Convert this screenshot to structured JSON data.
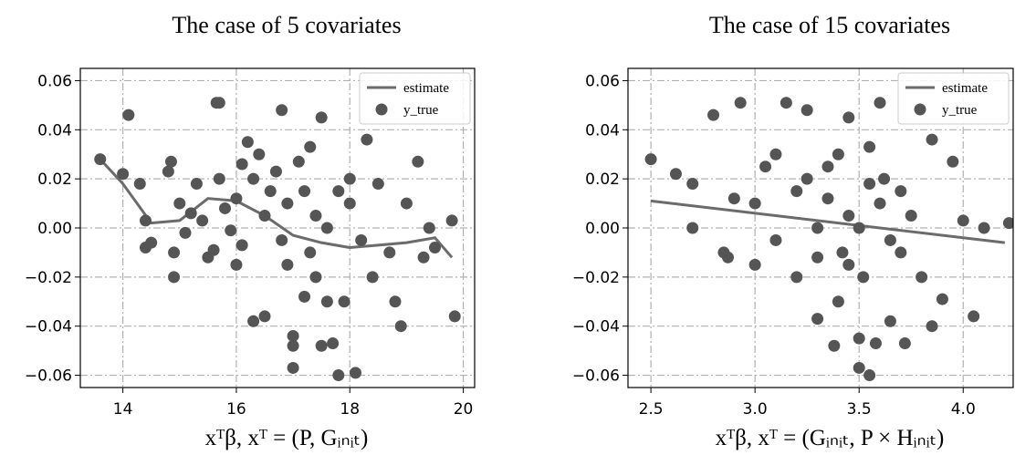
{
  "chart_data": [
    {
      "type": "scatter",
      "title": "The case of 5 covariates",
      "x_label": "xᵀβ, xᵀ = (P, Gᵢₙᵢₜ)",
      "xlim": [
        13.25,
        20.2
      ],
      "ylim": [
        -0.065,
        0.065
      ],
      "xticks": [
        14,
        16,
        18,
        20
      ],
      "yticks": [
        {
          "value": -0.06,
          "label": "−0.06"
        },
        {
          "value": -0.04,
          "label": "−0.04"
        },
        {
          "value": -0.02,
          "label": "−0.02"
        },
        {
          "value": 0,
          "label": "0.00"
        },
        0.02,
        0.04,
        0.06
      ],
      "grid": true,
      "legend": "upper right",
      "series": [
        {
          "name": "estimate",
          "type": "line",
          "color": "#6b6b6b",
          "x": [
            13.6,
            14.0,
            14.5,
            15.0,
            15.5,
            16.0,
            16.5,
            17.0,
            17.5,
            18.0,
            18.5,
            19.0,
            19.5,
            19.8
          ],
          "values": [
            0.028,
            0.018,
            0.002,
            0.003,
            0.012,
            0.011,
            0.005,
            -0.003,
            -0.006,
            -0.008,
            -0.007,
            -0.006,
            -0.004,
            -0.012
          ]
        },
        {
          "name": "y_true",
          "type": "scatter",
          "color": "#555555",
          "x": [
            13.6,
            14.1,
            14.0,
            14.3,
            14.4,
            14.4,
            14.5,
            14.8,
            14.85,
            14.9,
            14.9,
            15.0,
            15.1,
            15.2,
            15.3,
            15.4,
            15.5,
            15.6,
            15.7,
            15.65,
            15.7,
            15.8,
            15.9,
            16.0,
            16.0,
            16.1,
            16.1,
            16.2,
            16.3,
            16.3,
            16.4,
            16.5,
            16.5,
            16.6,
            16.7,
            16.8,
            16.8,
            16.9,
            17.0,
            17.0,
            17.0,
            17.1,
            17.2,
            17.3,
            17.4,
            17.4,
            17.5,
            17.5,
            17.6,
            17.7,
            17.8,
            17.8,
            17.9,
            18.0,
            18.1,
            18.2,
            18.3,
            18.4,
            18.5,
            18.7,
            18.8,
            18.9,
            19.0,
            19.2,
            19.3,
            19.4,
            19.5,
            19.8,
            19.85,
            17.2,
            17.6,
            16.9,
            18.0,
            17.3
          ],
          "values": [
            0.028,
            0.046,
            0.022,
            0.018,
            0.003,
            -0.008,
            -0.006,
            0.023,
            0.027,
            -0.02,
            -0.01,
            0.01,
            -0.002,
            0.006,
            0.018,
            0.003,
            -0.012,
            -0.009,
            0.051,
            0.051,
            0.02,
            0.008,
            -0.001,
            -0.015,
            0.012,
            0.026,
            -0.007,
            0.035,
            0.02,
            -0.038,
            0.03,
            0.005,
            -0.036,
            0.015,
            0.023,
            -0.005,
            0.048,
            0.01,
            -0.044,
            -0.057,
            -0.048,
            0.027,
            -0.028,
            0.033,
            0.005,
            -0.02,
            0.045,
            -0.048,
            -0.03,
            -0.047,
            0.015,
            -0.06,
            -0.03,
            0.01,
            -0.059,
            -0.005,
            0.036,
            -0.02,
            0.018,
            -0.01,
            -0.03,
            -0.04,
            0.01,
            0.027,
            -0.012,
            0,
            -0.008,
            0.003,
            -0.036,
            0.015,
            0,
            -0.015,
            0.02,
            -0.01
          ]
        }
      ]
    },
    {
      "type": "scatter",
      "title": "The case of 15 covariates",
      "x_label": "xᵀβ, xᵀ = (Gᵢₙᵢₜ, P × Hᵢₙᵢₜ)",
      "xlim": [
        2.39,
        4.24
      ],
      "ylim": [
        -0.065,
        0.065
      ],
      "xticks": [
        2.5,
        {
          "value": 3,
          "label": "3.0"
        },
        3.5,
        {
          "value": 4,
          "label": "4.0"
        }
      ],
      "yticks": [
        {
          "value": -0.06,
          "label": "−0.06"
        },
        {
          "value": -0.04,
          "label": "−0.04"
        },
        {
          "value": -0.02,
          "label": "−0.02"
        },
        {
          "value": 0,
          "label": "0.00"
        },
        0.02,
        0.04,
        0.06
      ],
      "grid": true,
      "legend": "upper right",
      "series": [
        {
          "name": "estimate",
          "type": "line",
          "color": "#6b6b6b",
          "x": [
            2.5,
            4.2
          ],
          "values": [
            0.011,
            -0.006
          ]
        },
        {
          "name": "y_true",
          "type": "scatter",
          "color": "#555555",
          "x": [
            2.5,
            2.62,
            2.7,
            2.7,
            2.8,
            2.85,
            2.87,
            2.9,
            2.93,
            3.0,
            3.0,
            3.05,
            3.1,
            3.1,
            3.15,
            3.2,
            3.2,
            3.25,
            3.25,
            3.3,
            3.3,
            3.35,
            3.38,
            3.4,
            3.42,
            3.45,
            3.45,
            3.5,
            3.5,
            3.52,
            3.55,
            3.55,
            3.58,
            3.6,
            3.62,
            3.65,
            3.65,
            3.7,
            3.72,
            3.75,
            3.8,
            3.85,
            3.85,
            3.9,
            3.95,
            4.0,
            4.05,
            4.1,
            3.6,
            3.35,
            3.5,
            3.45,
            3.55,
            3.4,
            3.7,
            3.3,
            4.22
          ],
          "values": [
            0.028,
            0.022,
            0.018,
            0,
            0.046,
            -0.01,
            -0.012,
            0.012,
            0.051,
            0.01,
            -0.015,
            0.025,
            0.03,
            -0.005,
            0.051,
            0.015,
            -0.02,
            0.048,
            0.02,
            -0.037,
            0,
            0.012,
            -0.048,
            -0.03,
            -0.01,
            0.045,
            0.005,
            -0.057,
            -0.045,
            -0.02,
            -0.06,
            0.033,
            -0.047,
            0.01,
            0.02,
            -0.038,
            -0.005,
            0.015,
            -0.047,
            0.005,
            -0.02,
            0.036,
            -0.04,
            -0.029,
            0.027,
            0.003,
            -0.036,
            0,
            0.051,
            0.025,
            0,
            -0.015,
            0.018,
            0.03,
            -0.01,
            -0.012,
            0.002
          ]
        }
      ]
    }
  ]
}
